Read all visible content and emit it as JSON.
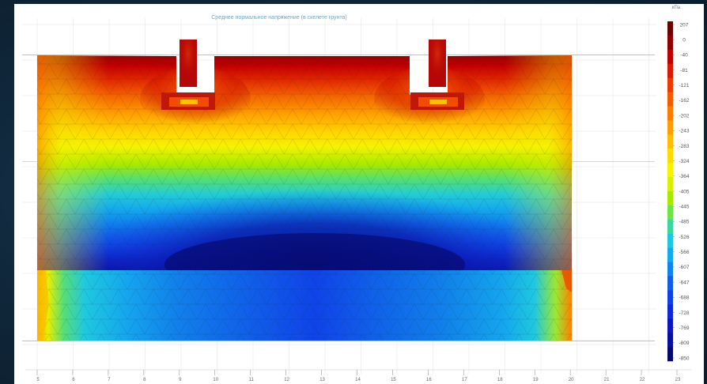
{
  "title": "Среднее нормальное напряжение (в скелете грунта)",
  "unit": "кПа",
  "colors": {
    "scale": [
      "#6b0000",
      "#900000",
      "#bb0000",
      "#d71a00",
      "#ea3b00",
      "#f45c00",
      "#fb7d00",
      "#fe9e00",
      "#ffbe00",
      "#ffdd00",
      "#f7f300",
      "#d8f000",
      "#a7ea00",
      "#6fe34a",
      "#3ed6a0",
      "#1fc7e2",
      "#14a9ee",
      "#1084ea",
      "#105ee8",
      "#1040e8",
      "#0f28d8",
      "#0b17bb",
      "#071098",
      "#05096c"
    ],
    "accent": "#6aa7c7"
  },
  "chart_data": {
    "type": "heatmap",
    "legend": {
      "position": "right",
      "values": [
        207,
        0,
        -40,
        -81,
        -121,
        -162,
        -202,
        -243,
        -283,
        -324,
        -364,
        -405,
        -445,
        -485,
        -526,
        -566,
        -607,
        -647,
        -688,
        -728,
        -769,
        -809,
        -850
      ]
    },
    "x_ticks": [
      "5",
      "6",
      "7",
      "8",
      "9",
      "10",
      "11",
      "12",
      "13",
      "14",
      "15",
      "16",
      "17",
      "18",
      "19",
      "20",
      "21",
      "22",
      "23"
    ]
  }
}
